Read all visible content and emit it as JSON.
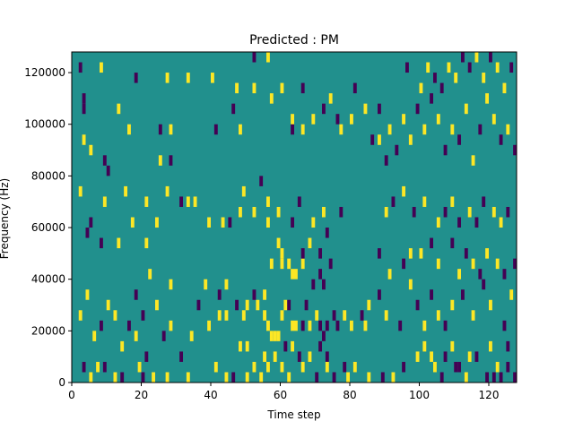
{
  "chart_data": {
    "type": "heatmap",
    "title": "Predicted : PM",
    "xlabel": "Time step",
    "ylabel": "Frequency (Hz)",
    "xlim": [
      0,
      128
    ],
    "ylim": [
      0,
      128000
    ],
    "x_ticks": [
      0,
      20,
      40,
      60,
      80,
      100,
      120
    ],
    "y_ticks": [
      0,
      20000,
      40000,
      60000,
      80000,
      100000,
      120000
    ],
    "grid": false,
    "legend": "none",
    "colors": {
      "background": "#21908d",
      "low": "#440154",
      "high": "#fde725"
    },
    "background_value": 0,
    "cell_size": {
      "time_steps": 1,
      "hz": 4000
    },
    "cells": [
      [
        2,
        120000,
        -1
      ],
      [
        8,
        120000,
        1
      ],
      [
        18,
        116000,
        -1
      ],
      [
        27,
        116000,
        1
      ],
      [
        33,
        116000,
        1
      ],
      [
        40,
        116000,
        1
      ],
      [
        3,
        104000,
        -1
      ],
      [
        13,
        104000,
        1
      ],
      [
        46,
        104000,
        -1
      ],
      [
        3,
        108000,
        -1
      ],
      [
        16,
        96000,
        1
      ],
      [
        25,
        96000,
        -1
      ],
      [
        28,
        96000,
        1
      ],
      [
        41,
        96000,
        -1
      ],
      [
        48,
        96000,
        1
      ],
      [
        63,
        96000,
        -1
      ],
      [
        66,
        96000,
        1
      ],
      [
        76,
        100000,
        -1
      ],
      [
        80,
        100000,
        1
      ],
      [
        3,
        92000,
        1
      ],
      [
        5,
        88000,
        1
      ],
      [
        9,
        84000,
        -1
      ],
      [
        10,
        80000,
        -1
      ],
      [
        25,
        84000,
        1
      ],
      [
        28,
        84000,
        -1
      ],
      [
        2,
        72000,
        1
      ],
      [
        9,
        68000,
        1
      ],
      [
        15,
        72000,
        1
      ],
      [
        21,
        68000,
        1
      ],
      [
        27,
        72000,
        1
      ],
      [
        31,
        68000,
        -1
      ],
      [
        33,
        68000,
        1
      ],
      [
        35,
        68000,
        1
      ],
      [
        49,
        72000,
        1
      ],
      [
        54,
        76000,
        -1
      ],
      [
        56,
        68000,
        1
      ],
      [
        65,
        68000,
        -1
      ],
      [
        72,
        64000,
        1
      ],
      [
        77,
        64000,
        -1
      ],
      [
        68,
        52000,
        1
      ],
      [
        5,
        60000,
        -1
      ],
      [
        8,
        52000,
        -1
      ],
      [
        13,
        52000,
        1
      ],
      [
        21,
        52000,
        1
      ],
      [
        24,
        60000,
        1
      ],
      [
        4,
        56000,
        -1
      ],
      [
        17,
        60000,
        1
      ],
      [
        39,
        60000,
        1
      ],
      [
        43,
        60000,
        1
      ],
      [
        45,
        60000,
        -1
      ],
      [
        48,
        64000,
        1
      ],
      [
        52,
        64000,
        1
      ],
      [
        56,
        60000,
        1
      ],
      [
        59,
        64000,
        1
      ],
      [
        63,
        60000,
        -1
      ],
      [
        69,
        60000,
        1
      ],
      [
        73,
        56000,
        -1
      ],
      [
        59,
        52000,
        1
      ],
      [
        60,
        48000,
        1
      ],
      [
        57,
        44000,
        1
      ],
      [
        60,
        44000,
        1
      ],
      [
        62,
        44000,
        1
      ],
      [
        63,
        40000,
        1
      ],
      [
        64,
        40000,
        1
      ],
      [
        66,
        44000,
        1
      ],
      [
        71,
        40000,
        -1
      ],
      [
        74,
        44000,
        -1
      ],
      [
        72,
        36000,
        -1
      ],
      [
        69,
        36000,
        -1
      ],
      [
        66,
        48000,
        -1
      ],
      [
        71,
        48000,
        -1
      ],
      [
        18,
        32000,
        -1
      ],
      [
        22,
        40000,
        1
      ],
      [
        28,
        36000,
        1
      ],
      [
        38,
        36000,
        1
      ],
      [
        42,
        24000,
        1
      ],
      [
        44,
        24000,
        1
      ],
      [
        47,
        28000,
        -1
      ],
      [
        49,
        24000,
        1
      ],
      [
        50,
        28000,
        1
      ],
      [
        52,
        32000,
        -1
      ],
      [
        53,
        28000,
        1
      ],
      [
        55,
        32000,
        1
      ],
      [
        55,
        24000,
        1
      ],
      [
        56,
        20000,
        1
      ],
      [
        57,
        16000,
        1
      ],
      [
        58,
        16000,
        1
      ],
      [
        59,
        16000,
        1
      ],
      [
        60,
        24000,
        1
      ],
      [
        61,
        28000,
        1
      ],
      [
        62,
        28000,
        -1
      ],
      [
        63,
        20000,
        1
      ],
      [
        64,
        20000,
        1
      ],
      [
        66,
        20000,
        -1
      ],
      [
        67,
        28000,
        -1
      ],
      [
        68,
        20000,
        1
      ],
      [
        70,
        24000,
        1
      ],
      [
        71,
        20000,
        -1
      ],
      [
        72,
        16000,
        -1
      ],
      [
        73,
        20000,
        -1
      ],
      [
        75,
        24000,
        -1
      ],
      [
        76,
        20000,
        -1
      ],
      [
        78,
        24000,
        1
      ],
      [
        80,
        20000,
        1
      ],
      [
        83,
        24000,
        -1
      ],
      [
        84,
        20000,
        1
      ],
      [
        48,
        12000,
        1
      ],
      [
        50,
        12000,
        1
      ],
      [
        55,
        8000,
        1
      ],
      [
        61,
        12000,
        -1
      ],
      [
        63,
        12000,
        1
      ],
      [
        65,
        8000,
        -1
      ],
      [
        68,
        8000,
        1
      ],
      [
        71,
        12000,
        -1
      ],
      [
        73,
        8000,
        -1
      ],
      [
        78,
        4000,
        -1
      ],
      [
        3,
        4000,
        -1
      ],
      [
        5,
        0,
        1
      ],
      [
        7,
        4000,
        1
      ],
      [
        9,
        4000,
        -1
      ],
      [
        12,
        0,
        1
      ],
      [
        14,
        0,
        -1
      ],
      [
        19,
        4000,
        1
      ],
      [
        20,
        0,
        -1
      ],
      [
        23,
        0,
        1
      ],
      [
        27,
        0,
        1
      ],
      [
        33,
        0,
        1
      ],
      [
        41,
        4000,
        1
      ],
      [
        44,
        0,
        1
      ],
      [
        46,
        0,
        -1
      ],
      [
        50,
        0,
        1
      ],
      [
        52,
        4000,
        1
      ],
      [
        54,
        0,
        1
      ],
      [
        56,
        4000,
        1
      ],
      [
        58,
        8000,
        1
      ],
      [
        60,
        4000,
        1
      ],
      [
        62,
        0,
        1
      ],
      [
        66,
        4000,
        1
      ],
      [
        70,
        0,
        -1
      ],
      [
        73,
        4000,
        1
      ],
      [
        75,
        0,
        -1
      ],
      [
        79,
        0,
        1
      ],
      [
        81,
        4000,
        1
      ],
      [
        85,
        0,
        1
      ],
      [
        89,
        0,
        -1
      ],
      [
        92,
        0,
        1
      ],
      [
        95,
        4000,
        -1
      ],
      [
        99,
        8000,
        1
      ],
      [
        104,
        4000,
        1
      ],
      [
        106,
        0,
        -1
      ],
      [
        110,
        4000,
        -1
      ],
      [
        113,
        0,
        1
      ],
      [
        116,
        8000,
        -1
      ],
      [
        119,
        0,
        -1
      ],
      [
        121,
        0,
        -1
      ],
      [
        123,
        0,
        -1
      ],
      [
        125,
        4000,
        -1
      ],
      [
        127,
        0,
        -1
      ],
      [
        2,
        24000,
        1
      ],
      [
        4,
        32000,
        1
      ],
      [
        6,
        16000,
        1
      ],
      [
        8,
        20000,
        -1
      ],
      [
        10,
        28000,
        1
      ],
      [
        12,
        24000,
        1
      ],
      [
        14,
        12000,
        1
      ],
      [
        16,
        20000,
        -1
      ],
      [
        18,
        16000,
        1
      ],
      [
        20,
        24000,
        -1
      ],
      [
        21,
        8000,
        -1
      ],
      [
        24,
        28000,
        1
      ],
      [
        26,
        16000,
        -1
      ],
      [
        28,
        20000,
        1
      ],
      [
        31,
        8000,
        -1
      ],
      [
        34,
        16000,
        1
      ],
      [
        36,
        28000,
        -1
      ],
      [
        39,
        20000,
        1
      ],
      [
        42,
        32000,
        -1
      ],
      [
        44,
        36000,
        1
      ],
      [
        85,
        28000,
        1
      ],
      [
        88,
        32000,
        -1
      ],
      [
        90,
        24000,
        1
      ],
      [
        94,
        20000,
        -1
      ],
      [
        97,
        36000,
        1
      ],
      [
        99,
        28000,
        -1
      ],
      [
        101,
        20000,
        1
      ],
      [
        103,
        32000,
        -1
      ],
      [
        105,
        24000,
        1
      ],
      [
        107,
        20000,
        -1
      ],
      [
        109,
        28000,
        1
      ],
      [
        112,
        32000,
        -1
      ],
      [
        115,
        24000,
        1
      ],
      [
        118,
        36000,
        -1
      ],
      [
        120,
        28000,
        1
      ],
      [
        124,
        20000,
        -1
      ],
      [
        126,
        32000,
        1
      ],
      [
        101,
        12000,
        1
      ],
      [
        103,
        8000,
        1
      ],
      [
        107,
        8000,
        -1
      ],
      [
        109,
        12000,
        1
      ],
      [
        111,
        4000,
        -1
      ],
      [
        114,
        8000,
        1
      ],
      [
        120,
        12000,
        1
      ],
      [
        122,
        4000,
        1
      ],
      [
        125,
        12000,
        -1
      ],
      [
        88,
        48000,
        -1
      ],
      [
        91,
        40000,
        1
      ],
      [
        95,
        44000,
        -1
      ],
      [
        97,
        48000,
        1
      ],
      [
        100,
        48000,
        1
      ],
      [
        103,
        52000,
        -1
      ],
      [
        105,
        44000,
        1
      ],
      [
        109,
        52000,
        -1
      ],
      [
        111,
        40000,
        1
      ],
      [
        113,
        48000,
        -1
      ],
      [
        115,
        44000,
        1
      ],
      [
        117,
        40000,
        -1
      ],
      [
        119,
        48000,
        1
      ],
      [
        122,
        44000,
        1
      ],
      [
        124,
        40000,
        -1
      ],
      [
        127,
        44000,
        -1
      ],
      [
        90,
        64000,
        1
      ],
      [
        92,
        68000,
        -1
      ],
      [
        95,
        72000,
        1
      ],
      [
        98,
        64000,
        -1
      ],
      [
        101,
        68000,
        1
      ],
      [
        105,
        60000,
        1
      ],
      [
        107,
        64000,
        -1
      ],
      [
        109,
        68000,
        1
      ],
      [
        111,
        60000,
        -1
      ],
      [
        114,
        64000,
        1
      ],
      [
        116,
        60000,
        -1
      ],
      [
        118,
        68000,
        -1
      ],
      [
        121,
        64000,
        1
      ],
      [
        123,
        60000,
        1
      ],
      [
        125,
        64000,
        -1
      ],
      [
        88,
        92000,
        1
      ],
      [
        90,
        84000,
        -1
      ],
      [
        91,
        96000,
        1
      ],
      [
        93,
        88000,
        -1
      ],
      [
        95,
        100000,
        1
      ],
      [
        97,
        92000,
        1
      ],
      [
        99,
        104000,
        -1
      ],
      [
        101,
        96000,
        1
      ],
      [
        103,
        108000,
        -1
      ],
      [
        105,
        100000,
        1
      ],
      [
        107,
        88000,
        -1
      ],
      [
        109,
        96000,
        1
      ],
      [
        111,
        92000,
        -1
      ],
      [
        113,
        104000,
        1
      ],
      [
        115,
        84000,
        1
      ],
      [
        117,
        96000,
        -1
      ],
      [
        119,
        108000,
        1
      ],
      [
        121,
        100000,
        1
      ],
      [
        123,
        92000,
        -1
      ],
      [
        125,
        96000,
        1
      ],
      [
        127,
        88000,
        -1
      ],
      [
        96,
        120000,
        -1
      ],
      [
        100,
        112000,
        1
      ],
      [
        102,
        120000,
        1
      ],
      [
        104,
        116000,
        -1
      ],
      [
        106,
        112000,
        -1
      ],
      [
        108,
        120000,
        1
      ],
      [
        110,
        116000,
        1
      ],
      [
        112,
        124000,
        -1
      ],
      [
        114,
        120000,
        -1
      ],
      [
        116,
        124000,
        1
      ],
      [
        118,
        116000,
        1
      ],
      [
        120,
        124000,
        -1
      ],
      [
        122,
        120000,
        1
      ],
      [
        124,
        112000,
        1
      ],
      [
        126,
        120000,
        -1
      ],
      [
        52,
        124000,
        -1
      ],
      [
        56,
        124000,
        1
      ],
      [
        47,
        112000,
        1
      ],
      [
        52,
        112000,
        1
      ],
      [
        57,
        108000,
        1
      ],
      [
        60,
        112000,
        1
      ],
      [
        63,
        100000,
        1
      ],
      [
        66,
        112000,
        -1
      ],
      [
        69,
        100000,
        1
      ],
      [
        72,
        104000,
        -1
      ],
      [
        74,
        108000,
        1
      ],
      [
        77,
        96000,
        1
      ],
      [
        81,
        112000,
        -1
      ],
      [
        84,
        104000,
        1
      ],
      [
        86,
        92000,
        -1
      ],
      [
        88,
        104000,
        -1
      ]
    ]
  }
}
